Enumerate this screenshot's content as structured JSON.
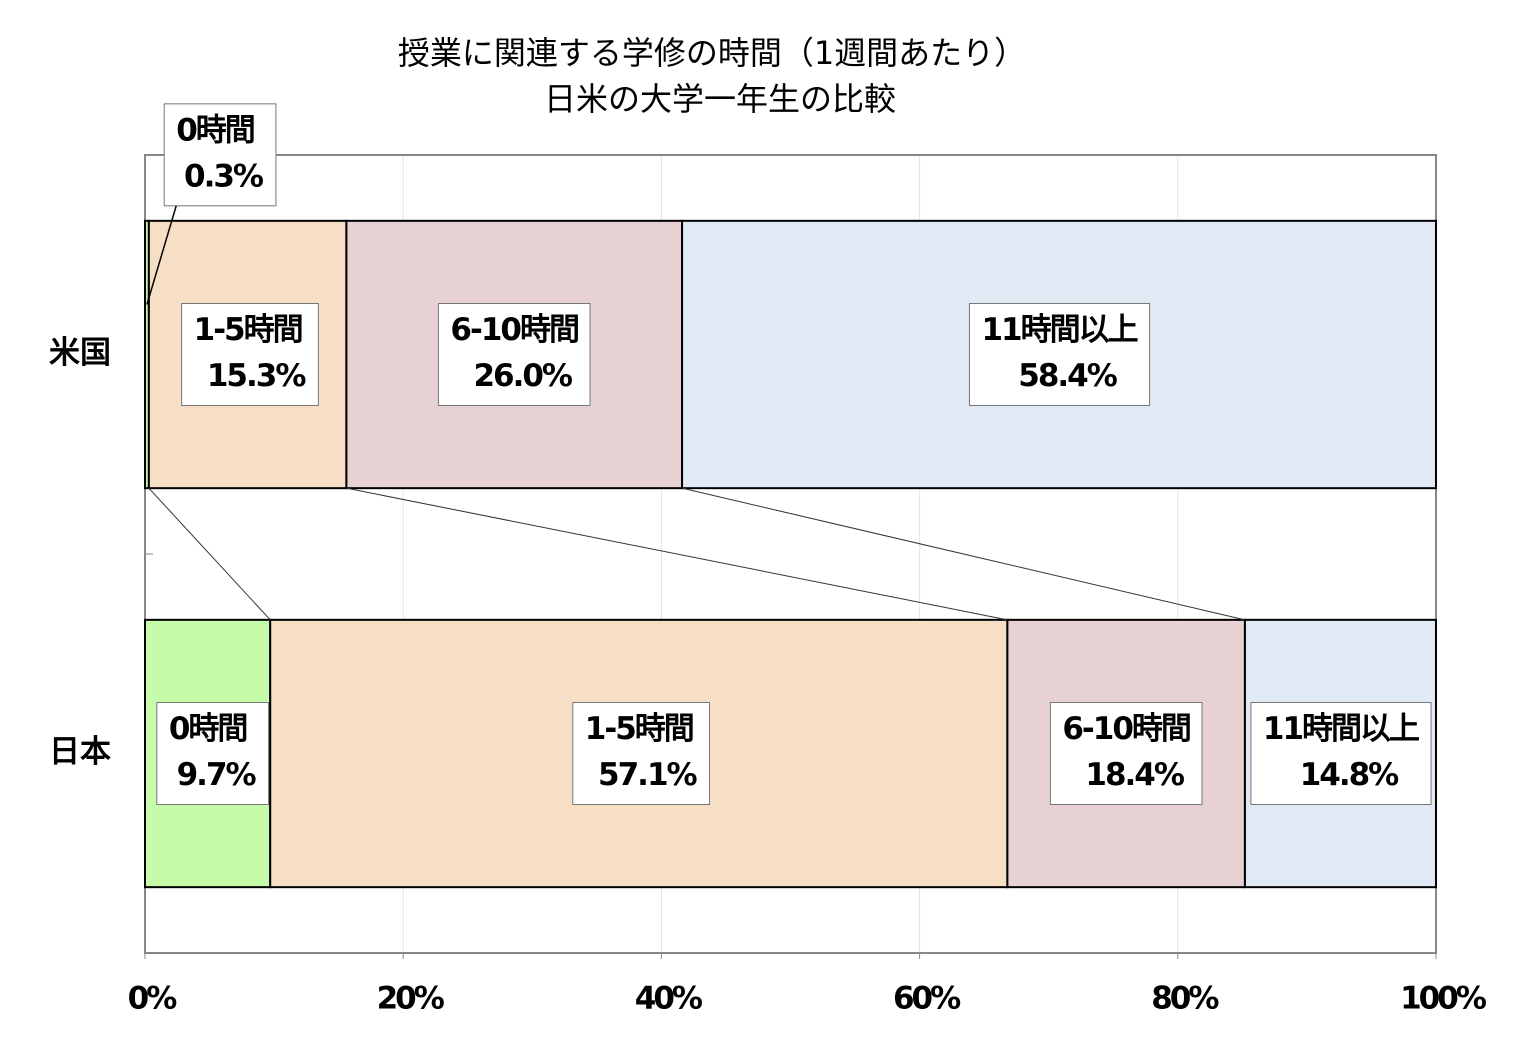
{
  "chart_data": {
    "type": "bar",
    "orientation": "horizontal",
    "stacked": true,
    "title": "授業に関連する学修の時間（1週間あたり）",
    "subtitle": "日米の大学一年生の比較",
    "categories": [
      "米国",
      "日本"
    ],
    "series": [
      {
        "name": "0時間",
        "color": "#c6fbaa",
        "values": [
          0.3,
          9.7
        ],
        "value_labels": [
          "0.3%",
          "9.7%"
        ]
      },
      {
        "name": "1-5時間",
        "color": "#f7dfc6",
        "values": [
          15.3,
          57.1
        ],
        "value_labels": [
          "15.3%",
          "57.1%"
        ]
      },
      {
        "name": "6-10時間",
        "color": "#e8d1d2",
        "values": [
          26.0,
          18.4
        ],
        "value_labels": [
          "26.0%",
          "18.4%"
        ]
      },
      {
        "name": "11時間以上",
        "color": "#e1e9f5",
        "values": [
          58.4,
          14.8
        ],
        "value_labels": [
          "58.4%",
          "14.8%"
        ]
      }
    ],
    "xlim": [
      0,
      100
    ],
    "xticks": [
      {
        "value": 0,
        "label": "0%"
      },
      {
        "value": 20,
        "label": "20%"
      },
      {
        "value": 40,
        "label": "40%"
      },
      {
        "value": 60,
        "label": "60%"
      },
      {
        "value": 80,
        "label": "80%"
      },
      {
        "value": 100,
        "label": "100%"
      }
    ],
    "grid": true
  }
}
